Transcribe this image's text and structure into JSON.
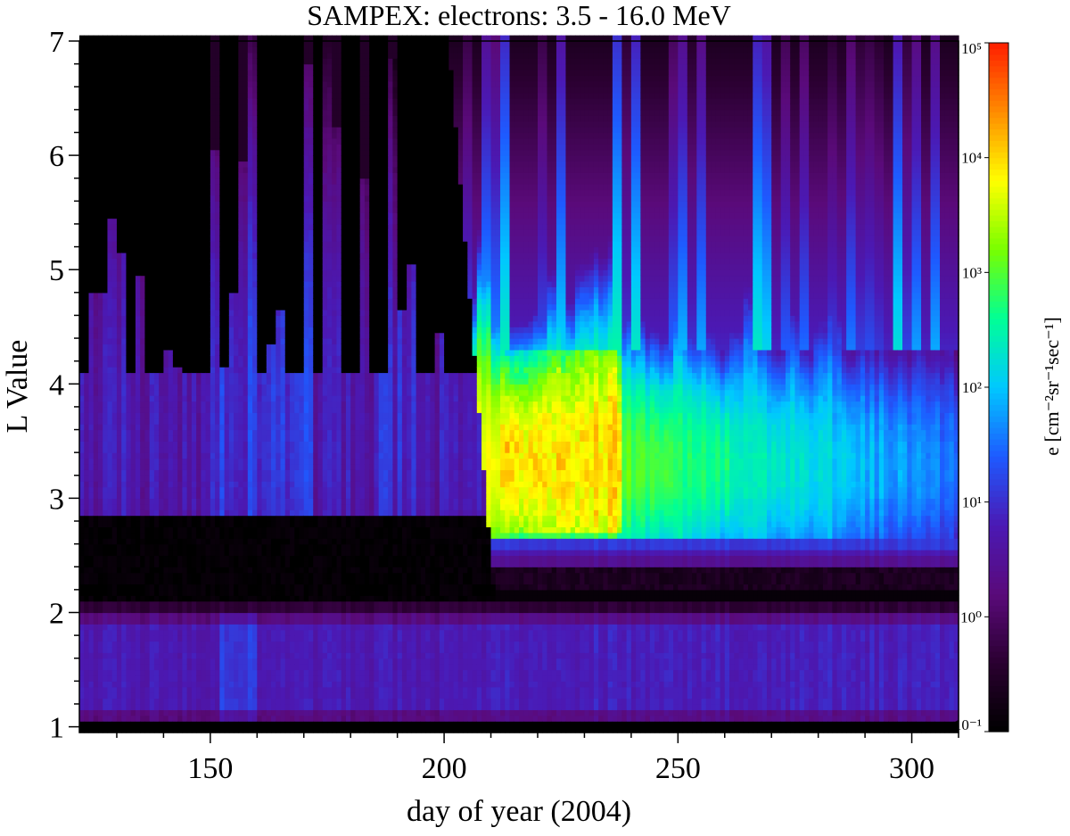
{
  "chart_data": {
    "type": "heatmap",
    "title": "SAMPEX: electrons: 3.5 - 16.0 MeV",
    "xlabel": "day of year (2004)",
    "ylabel": "L Value",
    "colorbar_label": "e [cm⁻²sr⁻¹sec⁻¹]",
    "xlim": [
      122,
      310
    ],
    "ylim": [
      0.95,
      7.0
    ],
    "x_ticks": [
      150,
      200,
      250,
      300
    ],
    "y_ticks": [
      1,
      2,
      3,
      4,
      5,
      6,
      7
    ],
    "colorbar_ticks": [
      "10⁻¹",
      "10⁰",
      "10¹",
      "10²",
      "10³",
      "10⁴",
      "10⁵"
    ],
    "colorbar_log_range": [
      -1,
      5
    ],
    "colormap": [
      "#000000",
      "#2a0030",
      "#5a0a7a",
      "#4b19b4",
      "#1e5aff",
      "#00c8ff",
      "#00ff96",
      "#78ff00",
      "#ffff00",
      "#ff8c00",
      "#ff1e00"
    ],
    "features": {
      "slot_region_L": [
        2.1,
        2.9
      ],
      "injection_day": 210,
      "peak_flux_region": {
        "days": [
          212,
          238
        ],
        "L": [
          2.7,
          4.3
        ],
        "log_flux": 4.0
      },
      "inner_belt_L": [
        1.1,
        2.0
      ]
    }
  }
}
